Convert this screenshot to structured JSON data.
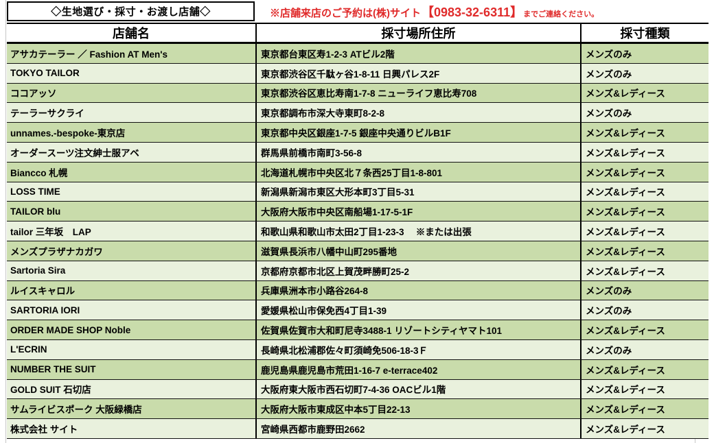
{
  "page": {
    "title": "◇生地選び・採寸・お渡し店舗◇",
    "notice": {
      "prefix": "※店舗来店のご予約は(株)サイト ",
      "phone": "【0983-32-6311】",
      "suffix": " までご連絡ください。"
    }
  },
  "table": {
    "columns": {
      "shop": "店舗名",
      "address": "採寸場所住所",
      "type": "採寸種類"
    },
    "rows": [
      {
        "shop": "アサカテーラー ／ Fashion AT Men's",
        "address": "東京都台東区寿1-2-3 ATビル2階",
        "type": "メンズのみ"
      },
      {
        "shop": "TOKYO TAILOR",
        "address": "東京都渋谷区千駄ヶ谷1-8-11 日興パレス2F",
        "type": "メンズのみ"
      },
      {
        "shop": "ココアッソ",
        "address": "東京都渋谷区恵比寿南1-7-8 ニューライフ恵比寿708",
        "type": "メンズ&レディース"
      },
      {
        "shop": "テーラーサクライ",
        "address": "東京都調布市深大寺東町8-2-8",
        "type": "メンズのみ"
      },
      {
        "shop": "unnames.-bespoke-東京店",
        "address": "東京都中央区銀座1-7-5 銀座中央通りビルB1F",
        "type": "メンズ&レディース"
      },
      {
        "shop": "オーダースーツ注文紳士服アベ",
        "address": "群馬県前橋市南町3-56-8",
        "type": "メンズ&レディース"
      },
      {
        "shop": "Biancco 札幌",
        "address": "北海道札幌市中央区北７条西25丁目1-8-801",
        "type": "メンズ&レディース"
      },
      {
        "shop": "LOSS TIME",
        "address": "新潟県新潟市東区大形本町3丁目5-31",
        "type": "メンズ&レディース"
      },
      {
        "shop": "TAILOR blu",
        "address": "大阪府大阪市中央区南船場1-17-5-1F",
        "type": "メンズ&レディース"
      },
      {
        "shop": "tailor 三年坂　LAP",
        "address": "和歌山県和歌山市太田2丁目1-23-3　 ※または出張",
        "type": "メンズ&レディース"
      },
      {
        "shop": "メンズプラザナカガワ",
        "address": "滋賀県長浜市八幡中山町295番地",
        "type": "メンズ&レディース"
      },
      {
        "shop": "Sartoria Sira",
        "address": "京都府京都市北区上賀茂畔勝町25-2",
        "type": "メンズ&レディース"
      },
      {
        "shop": "ルイスキャロル",
        "address": "兵庫県洲本市小路谷264-8",
        "type": "メンズのみ"
      },
      {
        "shop": "SARTORIA IORI",
        "address": "愛媛県松山市保免西4丁目1-39",
        "type": "メンズのみ"
      },
      {
        "shop": "ORDER MADE SHOP Noble",
        "address": "佐賀県佐賀市大和町尼寺3488-1 リゾートシティヤマト101",
        "type": "メンズ&レディース"
      },
      {
        "shop": "L'ECRIN",
        "address": "長崎県北松浦郡佐々町須崎免506-18-3Ｆ",
        "type": "メンズのみ"
      },
      {
        "shop": "NUMBER THE SUIT",
        "address": "鹿児島県鹿児島市荒田1-16-7 e-terrace402",
        "type": "メンズ&レディース"
      },
      {
        "shop": "GOLD SUIT 石切店",
        "address": "大阪府東大阪市西石切町7-4-36 OACビル1階",
        "type": "メンズ&レディース"
      },
      {
        "shop": "サムライビスポーク 大阪緑橋店",
        "address": "大阪府大阪市東成区中本5丁目22-13",
        "type": "メンズ&レディース"
      },
      {
        "shop": "株式会社 サイト",
        "address": "宮崎県西都市鹿野田2662",
        "type": "メンズ&レディース"
      }
    ]
  },
  "colors": {
    "row_dark_green": "#c9dcab",
    "row_light_green": "#e9f1dd",
    "notice_red": "#e02a2a",
    "border_black": "#000000"
  }
}
